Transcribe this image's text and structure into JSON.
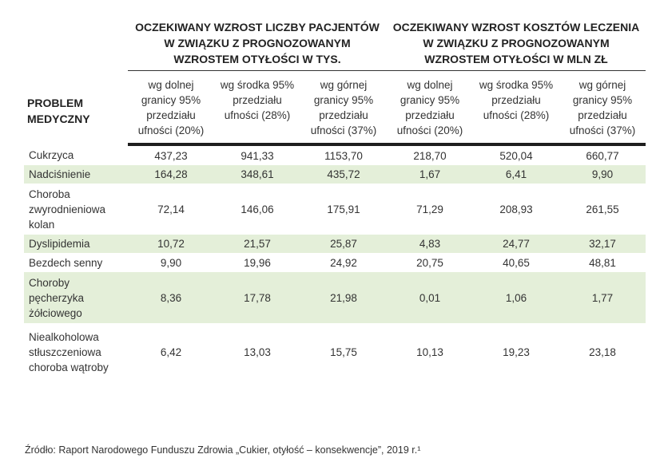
{
  "header": {
    "problem_label": "PROBLEM MEDYCZNY",
    "group_patients": "OCZEKIWANY WZROST LICZBY PACJENTÓW W ZWIĄZKU Z PROGNOZOWANYM WZROSTEM OTYŁOŚCI W TYS.",
    "group_costs": "OCZEKIWANY WZROST KOSZTÓW LECZENIA W ZWIĄZKU Z PROGNOZOWANYM WZROSTEM OTYŁOŚCI W MLN ZŁ",
    "subheaders": [
      "wg dolnej granicy 95% przedziału ufności (20%)",
      "wg środka 95% przedziału ufności (28%)",
      "wg górnej granicy 95% przedziału ufności (37%)",
      "wg dolnej granicy 95% przedziału ufności (20%)",
      "wg środka 95% przedziału ufności (28%)",
      "wg górnej granicy 95% przedziału ufności (37%)"
    ]
  },
  "rows": [
    {
      "name": "Cukrzyca",
      "values": [
        "437,23",
        "941,33",
        "1153,70",
        "218,70",
        "520,04",
        "660,77"
      ]
    },
    {
      "name": "Nadciśnienie",
      "values": [
        "164,28",
        "348,61",
        "435,72",
        "1,67",
        "6,41",
        "9,90"
      ]
    },
    {
      "name": "Choroba zwyrodnieniowa kolan",
      "values": [
        "72,14",
        "146,06",
        "175,91",
        "71,29",
        "208,93",
        "261,55"
      ]
    },
    {
      "name": "Dyslipidemia",
      "values": [
        "10,72",
        "21,57",
        "25,87",
        "4,83",
        "24,77",
        "32,17"
      ]
    },
    {
      "name": "Bezdech senny",
      "values": [
        "9,90",
        "19,96",
        "24,92",
        "20,75",
        "40,65",
        "48,81"
      ]
    },
    {
      "name": "Choroby pęcherzyka żółciowego",
      "values": [
        "8,36",
        "17,78",
        "21,98",
        "0,01",
        "1,06",
        "1,77"
      ]
    },
    {
      "name": "Niealkoholowa stłuszczeniowa choroba wątroby",
      "values": [
        "6,42",
        "13,03",
        "15,75",
        "10,13",
        "19,23",
        "23,18"
      ]
    }
  ],
  "source": "Źródło: Raport Narodowego Funduszu Zdrowia „Cukier, otyłość – konsekwencje”, 2019 r.¹"
}
